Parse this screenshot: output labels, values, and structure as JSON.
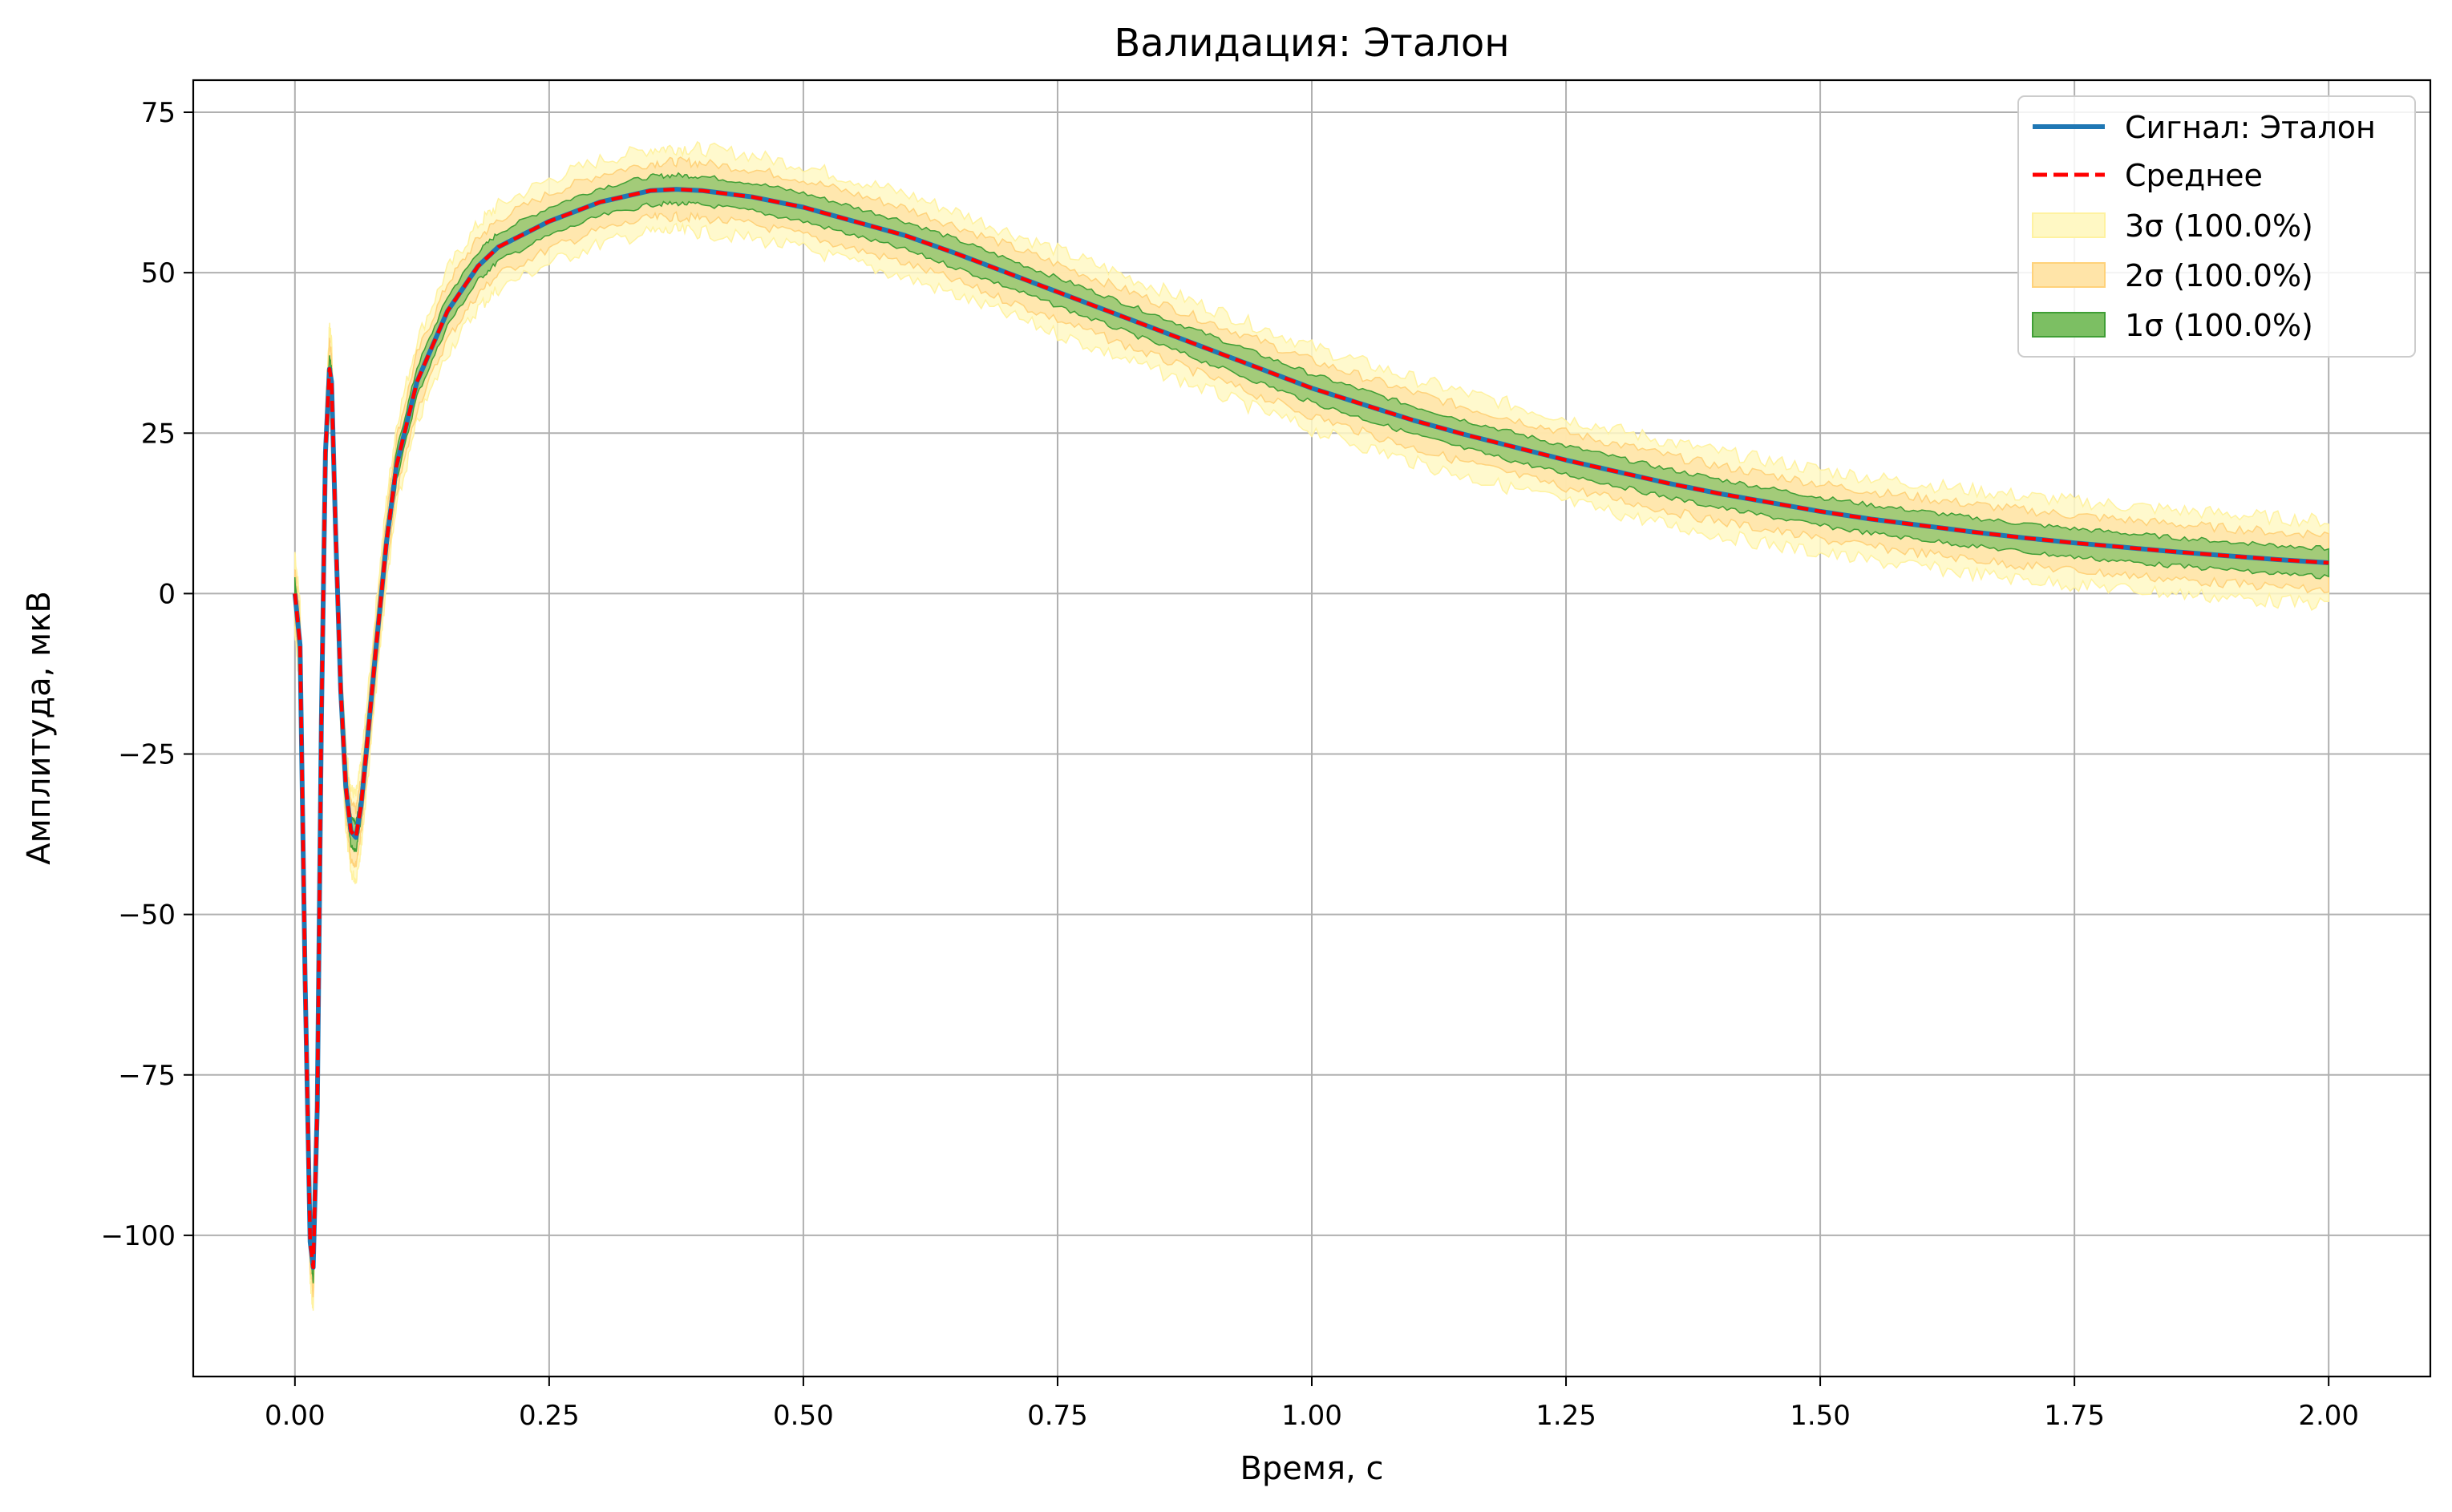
{
  "chart_data": {
    "type": "line",
    "title": "Валидация: Эталон",
    "xlabel": "Время, с",
    "ylabel": "Амплитуда, мкВ",
    "xlim": [
      -0.1,
      2.1
    ],
    "ylim": [
      -122,
      80
    ],
    "xticks": [
      0.0,
      0.25,
      0.5,
      0.75,
      1.0,
      1.25,
      1.5,
      1.75,
      2.0
    ],
    "xtick_labels": [
      "0.00",
      "0.25",
      "0.50",
      "0.75",
      "1.00",
      "1.25",
      "1.50",
      "1.75",
      "2.00"
    ],
    "yticks": [
      -100,
      -75,
      -50,
      -25,
      0,
      25,
      50,
      75
    ],
    "ytick_labels": [
      "−100",
      "−75",
      "−50",
      "−25",
      "0",
      "25",
      "50",
      "75"
    ],
    "grid": true,
    "legend_position": "top-right",
    "x": [
      0.0,
      0.005,
      0.01,
      0.015,
      0.018,
      0.022,
      0.026,
      0.03,
      0.034,
      0.036,
      0.04,
      0.045,
      0.05,
      0.055,
      0.06,
      0.065,
      0.07,
      0.08,
      0.09,
      0.1,
      0.12,
      0.15,
      0.18,
      0.2,
      0.25,
      0.3,
      0.35,
      0.375,
      0.4,
      0.45,
      0.5,
      0.55,
      0.6,
      0.65,
      0.7,
      0.75,
      0.8,
      0.85,
      0.9,
      0.95,
      1.0,
      1.05,
      1.1,
      1.15,
      1.2,
      1.25,
      1.3,
      1.35,
      1.4,
      1.45,
      1.5,
      1.55,
      1.6,
      1.65,
      1.7,
      1.75,
      1.8,
      1.85,
      1.9,
      1.95,
      2.0
    ],
    "series": [
      {
        "name": "Сигнал: Эталон",
        "color": "#1f77b4",
        "style": "solid",
        "values": [
          0,
          -8,
          -60,
          -101,
          -105,
          -80,
          -20,
          22,
          35,
          33,
          10,
          -15,
          -30,
          -37,
          -38,
          -33,
          -25,
          -8,
          8,
          20,
          33,
          44,
          51,
          54,
          58,
          61,
          62.8,
          63,
          62.8,
          61.8,
          60.2,
          58,
          55.8,
          53,
          50,
          47,
          44,
          41,
          38,
          35,
          32,
          29.5,
          27,
          24.8,
          22.8,
          20.8,
          19,
          17.2,
          15.6,
          14.2,
          12.8,
          11.6,
          10.6,
          9.6,
          8.7,
          7.9,
          7.2,
          6.5,
          5.9,
          5.3,
          4.8
        ]
      },
      {
        "name": "Среднее",
        "color": "#ff0000",
        "style": "dashed",
        "values": [
          0,
          -8,
          -60,
          -101,
          -105,
          -80,
          -20,
          22,
          35,
          33,
          10,
          -15,
          -30,
          -37,
          -38,
          -33,
          -25,
          -8,
          8,
          20,
          33,
          44,
          51,
          54,
          58,
          61,
          62.8,
          63,
          62.8,
          61.8,
          60.2,
          58,
          55.8,
          53,
          50,
          47,
          44,
          41,
          38,
          35,
          32,
          29.5,
          27,
          24.8,
          22.8,
          20.8,
          19,
          17.2,
          15.6,
          14.2,
          12.8,
          11.6,
          10.6,
          9.6,
          8.7,
          7.9,
          7.2,
          6.5,
          5.9,
          5.3,
          4.8
        ]
      }
    ],
    "bands": [
      {
        "name": "3σ (100.0%)",
        "color": "#fff8c4",
        "edge": "#fff2a0",
        "half_width": 6.5
      },
      {
        "name": "2σ (100.0%)",
        "color": "#ffe4a8",
        "edge": "#ffd27a",
        "half_width": 4.3
      },
      {
        "name": "1σ (100.0%)",
        "color": "#7cbf63",
        "edge": "#3f9e35",
        "half_width": 2.2
      }
    ]
  }
}
